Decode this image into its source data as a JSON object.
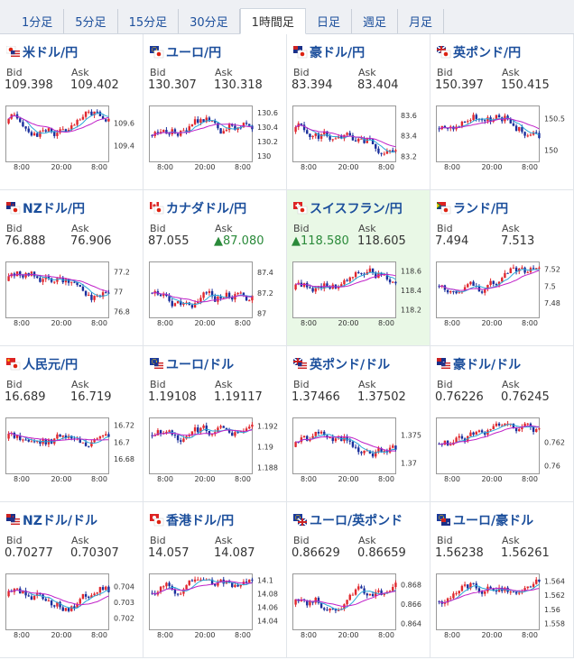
{
  "tabs": [
    {
      "label": "1分足",
      "active": false
    },
    {
      "label": "5分足",
      "active": false
    },
    {
      "label": "15分足",
      "active": false
    },
    {
      "label": "30分足",
      "active": false
    },
    {
      "label": "1時間足",
      "active": true
    },
    {
      "label": "日足",
      "active": false
    },
    {
      "label": "週足",
      "active": false
    },
    {
      "label": "月足",
      "active": false
    }
  ],
  "labels": {
    "bid": "Bid",
    "ask": "Ask"
  },
  "x_ticks": [
    "8:00",
    "20:00",
    "8:00"
  ],
  "colors": {
    "up": "#e0282e",
    "down": "#1a2f9c",
    "ma_fast": "#2aa8d8",
    "ma_slow": "#c020c8",
    "link": "#1c4f9c",
    "tick_up": "#2a8a3a"
  },
  "pairs": [
    {
      "name": "米ドル/円",
      "flag": "jp-us",
      "bid": "109.398",
      "ask": "109.402",
      "y_ticks": [
        "109.6",
        "109.4"
      ],
      "ylim": [
        109.28,
        109.72
      ]
    },
    {
      "name": "ユーロ/円",
      "flag": "eu-jp",
      "bid": "130.307",
      "ask": "130.318",
      "y_ticks": [
        "130.6",
        "130.4",
        "130.2",
        "130"
      ],
      "ylim": [
        129.95,
        130.65
      ]
    },
    {
      "name": "豪ドル/円",
      "flag": "au-jp",
      "bid": "83.394",
      "ask": "83.404",
      "y_ticks": [
        "83.6",
        "83.4",
        "83.2"
      ],
      "ylim": [
        83.17,
        83.66
      ]
    },
    {
      "name": "英ポンド/円",
      "flag": "gb-jp",
      "bid": "150.397",
      "ask": "150.415",
      "y_ticks": [
        "150.5",
        "150"
      ],
      "ylim": [
        149.85,
        150.65
      ]
    },
    {
      "name": "NZドル/円",
      "flag": "nz-jp",
      "bid": "76.888",
      "ask": "76.906",
      "y_ticks": [
        "77.2",
        "77",
        "76.8"
      ],
      "ylim": [
        76.76,
        77.27
      ]
    },
    {
      "name": "カナダドル/円",
      "flag": "ca-jp",
      "bid": "87.055",
      "ask": "▲87.080",
      "ask_up": true,
      "y_ticks": [
        "87.4",
        "87.2",
        "87"
      ],
      "ylim": [
        86.98,
        87.47
      ]
    },
    {
      "name": "スイスフラン/円",
      "flag": "ch-jp",
      "bid": "▲118.580",
      "bid_up": true,
      "ask": "118.605",
      "y_ticks": [
        "118.6",
        "118.4",
        "118.2"
      ],
      "ylim": [
        118.14,
        118.66
      ],
      "highlight": true
    },
    {
      "name": "ランド/円",
      "flag": "za-jp",
      "bid": "7.494",
      "ask": "7.513",
      "y_ticks": [
        "7.52",
        "7.5",
        "7.48"
      ],
      "ylim": [
        7.465,
        7.525
      ]
    },
    {
      "name": "人民元/円",
      "flag": "cn-jp",
      "bid": "16.689",
      "ask": "16.719",
      "y_ticks": [
        "16.72",
        "16.7",
        "16.68"
      ],
      "ylim": [
        16.665,
        16.725
      ]
    },
    {
      "name": "ユーロ/ドル",
      "flag": "eu-us",
      "bid": "1.19108",
      "ask": "1.19117",
      "y_ticks": [
        "1.192",
        "1.19",
        "1.188"
      ],
      "ylim": [
        1.1876,
        1.1925
      ]
    },
    {
      "name": "英ポンド/ドル",
      "flag": "gb-us",
      "bid": "1.37466",
      "ask": "1.37502",
      "y_ticks": [
        "1.375",
        "1.37"
      ],
      "ylim": [
        1.3685,
        1.3775
      ]
    },
    {
      "name": "豪ドル/ドル",
      "flag": "au-us",
      "bid": "0.76226",
      "ask": "0.76245",
      "y_ticks": [
        "0.762",
        "0.76"
      ],
      "ylim": [
        0.7595,
        0.7638
      ]
    },
    {
      "name": "NZドル/ドル",
      "flag": "nz-us",
      "bid": "0.70277",
      "ask": "0.70307",
      "y_ticks": [
        "0.704",
        "0.703",
        "0.702"
      ],
      "ylim": [
        0.7014,
        0.7046
      ]
    },
    {
      "name": "香港ドル/円",
      "flag": "hk-jp",
      "bid": "14.057",
      "ask": "14.087",
      "y_ticks": [
        "14.1",
        "14.08",
        "14.06",
        "14.04"
      ],
      "ylim": [
        14.03,
        14.105
      ]
    },
    {
      "name": "ユーロ/英ポンド",
      "flag": "eu-gb",
      "bid": "0.86629",
      "ask": "0.86659",
      "y_ticks": [
        "0.868",
        "0.866",
        "0.864"
      ],
      "ylim": [
        0.8636,
        0.8688
      ]
    },
    {
      "name": "ユーロ/豪ドル",
      "flag": "eu-au",
      "bid": "1.56238",
      "ask": "1.56261",
      "y_ticks": [
        "1.564",
        "1.562",
        "1.56",
        "1.558"
      ],
      "ylim": [
        1.5574,
        1.5646
      ]
    }
  ]
}
